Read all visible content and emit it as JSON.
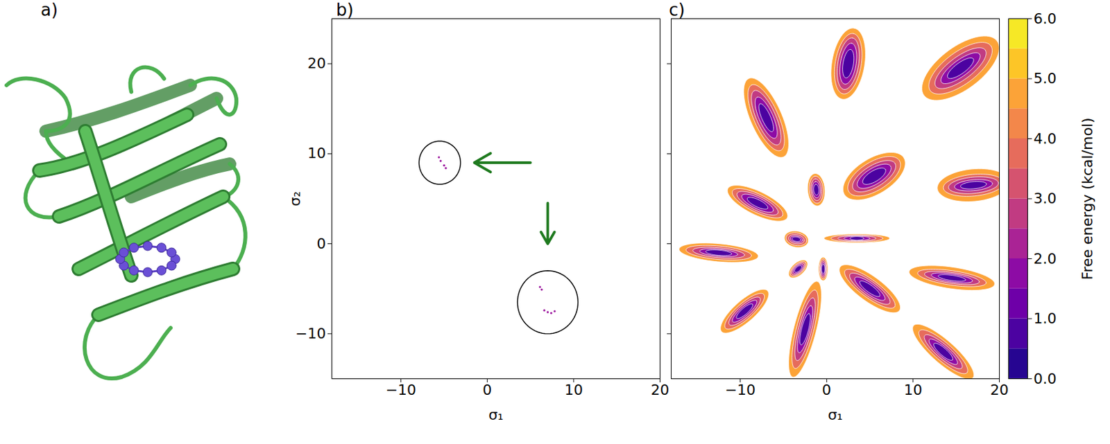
{
  "chart_data": [
    {
      "type": "image",
      "title": "a)"
    },
    {
      "type": "scatter",
      "title": "b)",
      "xlabel": "σ₁",
      "ylabel": "σ₂",
      "xlim": [
        -18,
        20
      ],
      "ylim": [
        -15,
        25
      ],
      "xticks": [
        -10,
        0,
        10,
        20
      ],
      "yticks": [
        -10,
        0,
        10,
        20
      ],
      "cells": [
        {
          "sigma1": -5.6,
          "sigma2": 9.6,
          "free_energy": 2.0
        },
        {
          "sigma1": -5.4,
          "sigma2": 9.2,
          "free_energy": 2.0
        },
        {
          "sigma1": -5.0,
          "sigma2": 8.7,
          "free_energy": 2.0
        },
        {
          "sigma1": -4.8,
          "sigma2": 8.4,
          "free_energy": 2.0
        },
        {
          "sigma1": 6.1,
          "sigma2": -4.8,
          "free_energy": 2.0
        },
        {
          "sigma1": 6.3,
          "sigma2": -5.1,
          "free_energy": 2.0
        },
        {
          "sigma1": 6.6,
          "sigma2": -7.4,
          "free_energy": 2.0
        },
        {
          "sigma1": 7.0,
          "sigma2": -7.6,
          "free_energy": 2.0
        },
        {
          "sigma1": 7.4,
          "sigma2": -7.7,
          "free_energy": 2.0
        },
        {
          "sigma1": 7.8,
          "sigma2": -7.5,
          "free_energy": 2.0
        }
      ],
      "highlights": {
        "color": "#1f7a1f",
        "circles": [
          {
            "center": [
              -5.5,
              9
            ],
            "radius": 2.4
          },
          {
            "center": [
              7,
              -6.5
            ],
            "radius": 3.5
          }
        ],
        "arrows": [
          {
            "from": [
              5,
              9
            ],
            "to": [
              -1.5,
              9
            ]
          },
          {
            "from": [
              7,
              4.5
            ],
            "to": [
              7,
              0
            ]
          }
        ]
      }
    },
    {
      "type": "contour",
      "title": "c)",
      "xlabel": "σ₁",
      "xlim": [
        -18,
        20
      ],
      "ylim": [
        -15,
        25
      ],
      "xticks": [
        -10,
        0,
        10,
        20
      ],
      "yticks": [
        -10,
        0,
        10,
        20
      ],
      "tick_labels": "x",
      "contour_levels": [
        5,
        4,
        3,
        2,
        1
      ],
      "basins": [
        {
          "sigma1": 2.5,
          "sigma2": 20,
          "angle": 80,
          "a": [
            4.0,
            3.4,
            2.9,
            2.3,
            1.6
          ],
          "b": [
            1.9,
            1.5,
            1.2,
            0.9,
            0.6
          ]
        },
        {
          "sigma1": 15.5,
          "sigma2": 19.5,
          "angle": 35,
          "a": [
            5.2,
            4.3,
            3.5,
            2.7,
            1.8
          ],
          "b": [
            2.4,
            1.8,
            1.3,
            0.9,
            0.6
          ]
        },
        {
          "sigma1": -7,
          "sigma2": 14,
          "angle": 115,
          "a": [
            4.8,
            4.0,
            3.3,
            2.5,
            1.7
          ],
          "b": [
            1.8,
            1.4,
            1.1,
            0.8,
            0.5
          ]
        },
        {
          "sigma1": 5.5,
          "sigma2": 7.5,
          "angle": 30,
          "a": [
            4.0,
            3.4,
            2.8,
            2.2,
            1.5
          ],
          "b": [
            2.0,
            1.6,
            1.2,
            0.9,
            0.6
          ]
        },
        {
          "sigma1": 17,
          "sigma2": 6.5,
          "angle": 5,
          "a": [
            4.2,
            3.5,
            2.9,
            2.2,
            1.5
          ],
          "b": [
            1.8,
            1.2,
            0.9,
            0.6,
            0.4
          ]
        },
        {
          "sigma1": -1.2,
          "sigma2": 6,
          "angle": 95,
          "a": [
            1.8,
            1.5,
            1.2,
            0.9,
            0.6
          ],
          "b": [
            1.0,
            0.8,
            0.6,
            0.45,
            0.3
          ]
        },
        {
          "sigma1": -8,
          "sigma2": 4.5,
          "angle": -25,
          "a": [
            3.8,
            3.2,
            2.6,
            2.0,
            1.3
          ],
          "b": [
            1.3,
            1.0,
            0.8,
            0.6,
            0.4
          ]
        },
        {
          "sigma1": -3.5,
          "sigma2": 0.5,
          "angle": -10,
          "a": [
            1.4,
            1.2,
            0.9,
            0.7,
            0.5
          ],
          "b": [
            0.9,
            0.7,
            0.5,
            0.35,
            0.25
          ]
        },
        {
          "sigma1": -12.5,
          "sigma2": -1,
          "angle": -5,
          "a": [
            4.6,
            3.8,
            3.0,
            2.2,
            1.5
          ],
          "b": [
            1.0,
            0.75,
            0.55,
            0.4,
            0.3
          ]
        },
        {
          "sigma1": 3.5,
          "sigma2": 0.6,
          "angle": 0,
          "a": [
            3.8,
            3.0,
            2.2,
            1.5,
            0.8
          ],
          "b": [
            0.5,
            0.4,
            0.3,
            0.25,
            0.2
          ]
        },
        {
          "sigma1": -3.3,
          "sigma2": -2.8,
          "angle": 40,
          "a": [
            1.3,
            1.1,
            0.9,
            0.7,
            0.5
          ],
          "b": [
            0.7,
            0.55,
            0.45,
            0.35,
            0.25
          ]
        },
        {
          "sigma1": -0.4,
          "sigma2": -2.8,
          "angle": 90,
          "a": [
            1.3,
            1.1,
            0.9,
            0.7,
            0.5
          ],
          "b": [
            0.55,
            0.45,
            0.35,
            0.25,
            0.2
          ]
        },
        {
          "sigma1": 5,
          "sigma2": -5,
          "angle": -35,
          "a": [
            4.2,
            3.5,
            2.8,
            2.1,
            1.4
          ],
          "b": [
            1.4,
            1.0,
            0.8,
            0.6,
            0.4
          ]
        },
        {
          "sigma1": 14.5,
          "sigma2": -3.8,
          "angle": -8,
          "a": [
            5.0,
            4.0,
            3.2,
            2.4,
            1.6
          ],
          "b": [
            1.2,
            0.8,
            0.6,
            0.45,
            0.3
          ]
        },
        {
          "sigma1": -9.5,
          "sigma2": -7.5,
          "angle": 40,
          "a": [
            3.5,
            2.9,
            2.3,
            1.8,
            1.2
          ],
          "b": [
            1.2,
            0.9,
            0.7,
            0.5,
            0.35
          ]
        },
        {
          "sigma1": -2.5,
          "sigma2": -9.5,
          "angle": 75,
          "a": [
            5.5,
            4.5,
            3.6,
            2.7,
            1.8
          ],
          "b": [
            1.3,
            1.0,
            0.75,
            0.55,
            0.4
          ]
        },
        {
          "sigma1": 13.5,
          "sigma2": -12,
          "angle": -40,
          "a": [
            4.5,
            3.6,
            2.8,
            2.1,
            1.4
          ],
          "b": [
            1.3,
            1.0,
            0.75,
            0.55,
            0.4
          ]
        }
      ],
      "colorbar": {
        "label": "Free energy (kcal/mol)",
        "range": [
          0,
          6
        ],
        "ticks": [
          0,
          1,
          2,
          3,
          4,
          5,
          6
        ],
        "levels": [
          0,
          0.5,
          1,
          1.5,
          2,
          2.5,
          3,
          3.5,
          4,
          4.5,
          5,
          5.5,
          6
        ]
      }
    }
  ]
}
